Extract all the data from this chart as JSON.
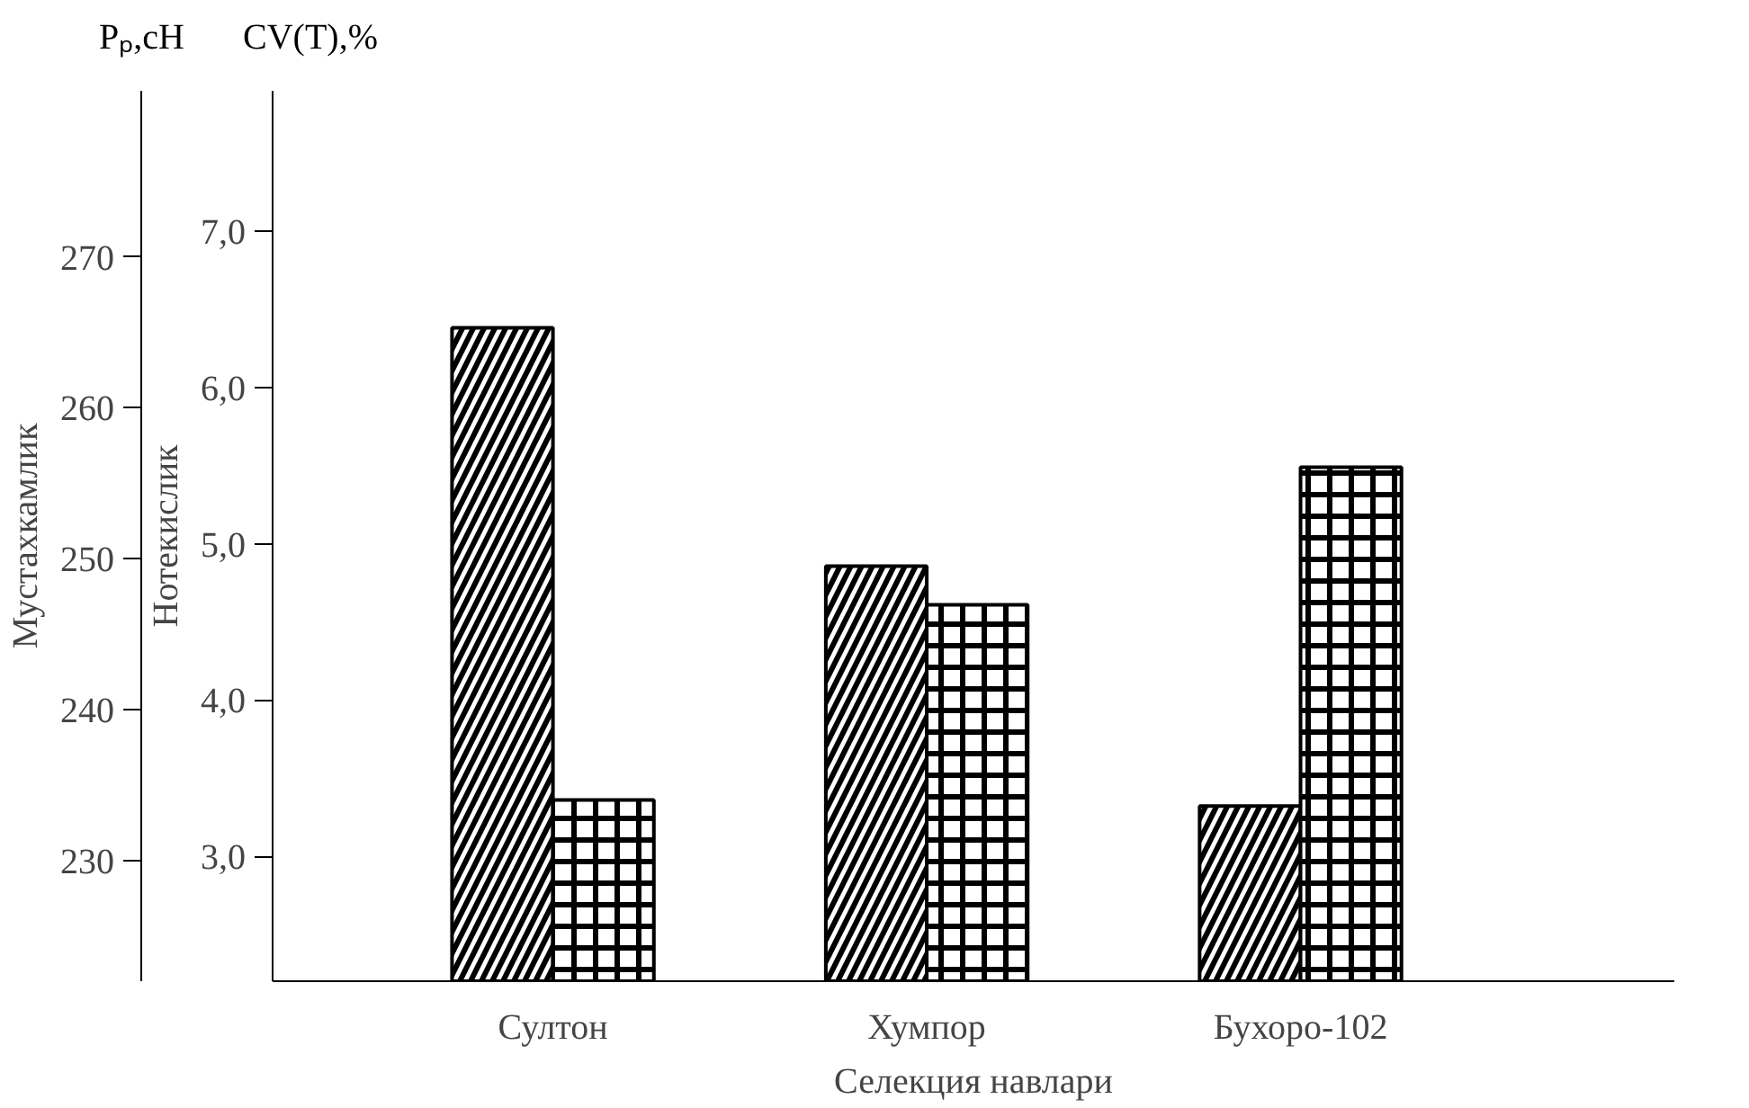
{
  "chart_data": {
    "type": "bar",
    "categories": [
      "Султон",
      "Хумпор",
      "Бухоро-102"
    ],
    "series": [
      {
        "color": "#000000",
        "values": [
          265.3,
          249.5,
          233.6
        ]
      },
      {
        "color": "#000000",
        "values": [
          3.36,
          4.61,
          5.49
        ],
        "axis": "y2"
      }
    ],
    "xlabel": "Селекция навлари",
    "ylabel": "Мустахкамлик",
    "y2label": "Нотекислик",
    "annotations": [
      "Pₚ,cH",
      "CV(T),%"
    ],
    "ylim": [
      222,
      281
    ],
    "yticks": [
      230,
      240,
      250,
      260,
      270
    ],
    "y2lim": [
      2.2,
      7.9
    ],
    "y2ticks": [
      {
        "value": 3,
        "label": "3,0"
      },
      {
        "value": 4,
        "label": "4,0"
      },
      {
        "value": 5,
        "label": "5,0"
      },
      {
        "value": 6,
        "label": "6,0"
      },
      {
        "value": 7,
        "label": "7,0"
      }
    ],
    "grid": false
  }
}
